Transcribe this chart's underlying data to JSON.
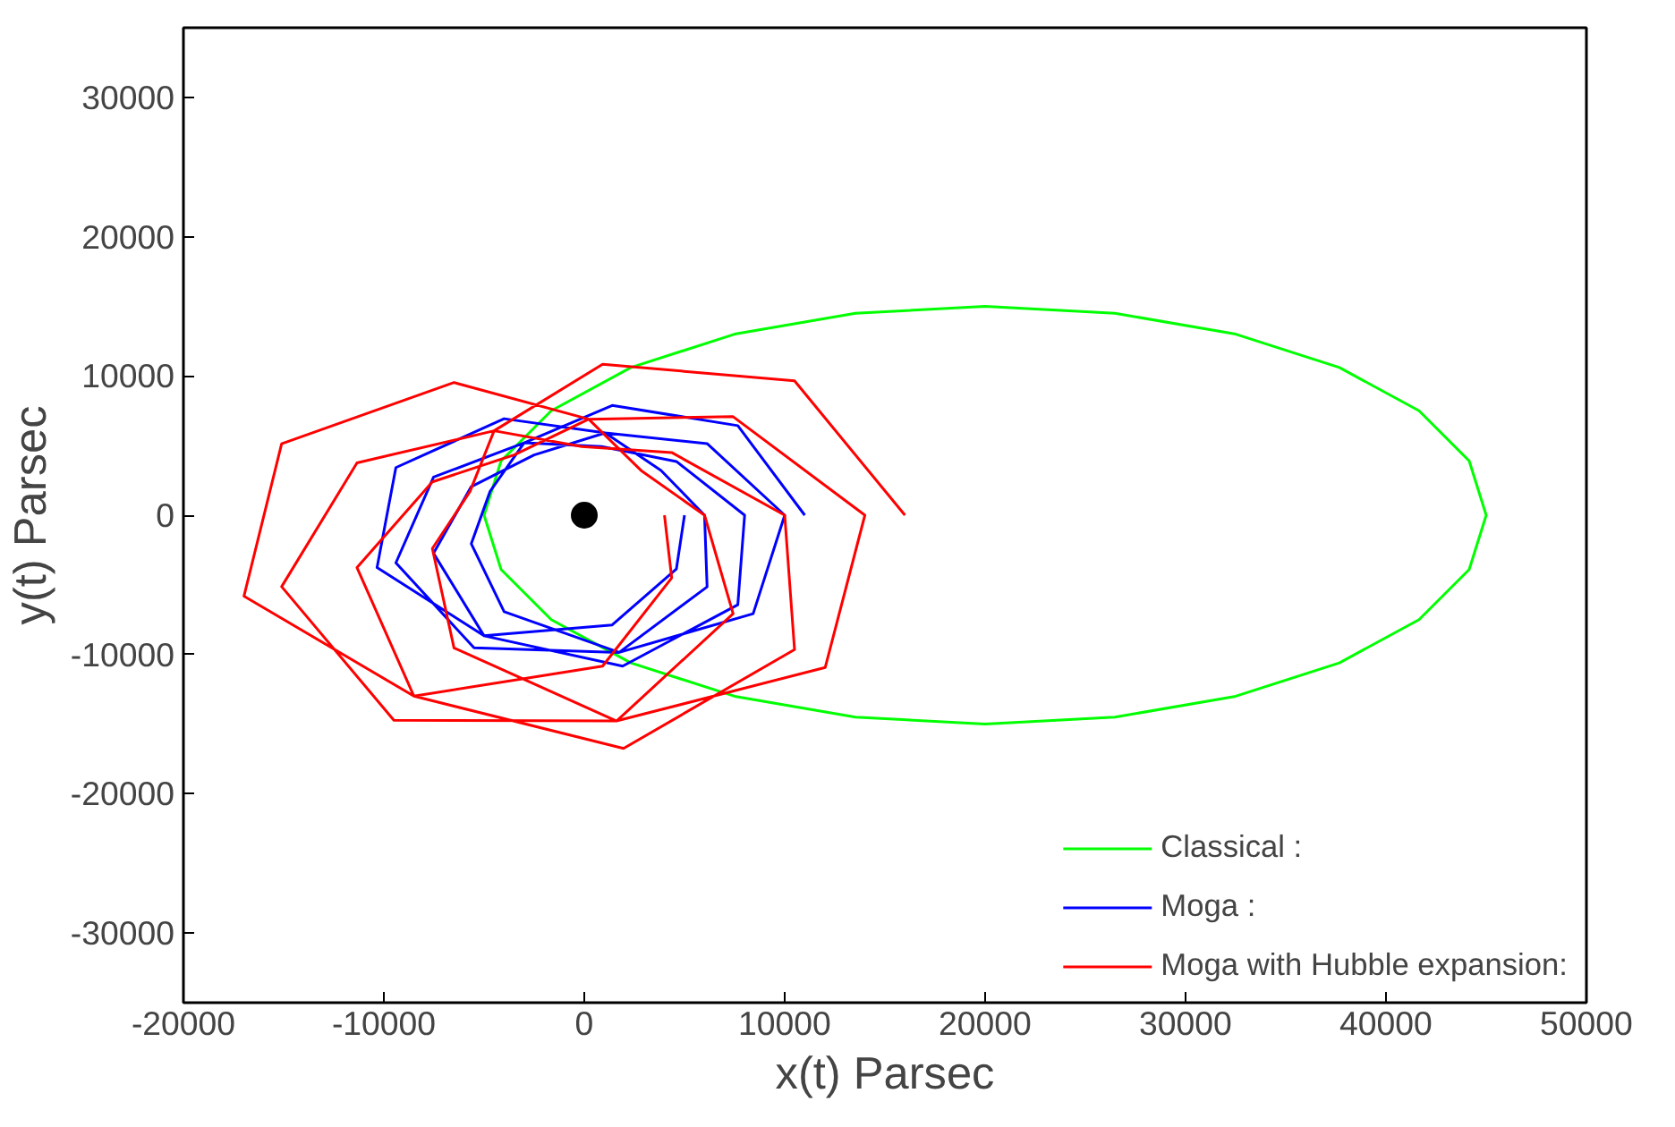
{
  "chart_data": {
    "type": "line",
    "xlabel": "x(t) Parsec",
    "ylabel": "y(t) Parsec",
    "xlim": [
      -20000,
      50000
    ],
    "ylim": [
      -35000,
      35000
    ],
    "xticks": [
      -20000,
      -10000,
      0,
      10000,
      20000,
      30000,
      40000,
      50000
    ],
    "yticks": [
      -30000,
      -20000,
      -10000,
      0,
      10000,
      20000,
      30000
    ],
    "grid": false,
    "legend": "bottom right",
    "marker": "none",
    "line_style": "solid",
    "series": [
      {
        "name": "Classical :",
        "color": "#00ff00",
        "x": [
          45000,
          44150,
          41650,
          37675,
          32500,
          26475,
          20000,
          13525,
          7500,
          2325,
          -1650,
          -4150,
          -5000,
          -4150,
          -1650,
          2325,
          7500,
          13525,
          20000,
          26475,
          32500,
          37675,
          41650,
          44150,
          45000,
          44150
        ],
        "values": [
          0,
          3900,
          7500,
          10600,
          13000,
          14500,
          15000,
          14500,
          13000,
          10600,
          7500,
          3900,
          0,
          -3900,
          -7500,
          -10600,
          -13000,
          -14500,
          -15000,
          -14500,
          -13000,
          -10600,
          -7500,
          -3900,
          0,
          3900
        ]
      },
      {
        "name": "Moga :",
        "color": "#0000ff",
        "x": [
          11000,
          7660,
          1392,
          -3000,
          -4700,
          -5640,
          -4000,
          1740,
          8426,
          10000,
          6128,
          1044,
          -2500,
          -5640,
          -7520,
          -5000,
          1914,
          7660,
          8000,
          4596,
          870,
          -3000,
          -7520,
          -9400,
          -5500,
          1740,
          6128,
          6000,
          3830,
          1044,
          -4000,
          -9400,
          -10340,
          -5000,
          1392,
          4596,
          5000
        ],
        "values": [
          0,
          6430,
          7880,
          5196,
          1710,
          -2052,
          -6928,
          -9850,
          -7073,
          0,
          5144,
          5910,
          4330,
          2052,
          -2736,
          -8660,
          -10835,
          -6430,
          0,
          3858,
          4925,
          5196,
          2736,
          -3420,
          -9526,
          -9850,
          -5144,
          0,
          3215,
          5910,
          6928,
          3420,
          -3762,
          -8660,
          -7880,
          -3858,
          0
        ]
      },
      {
        "name": "Moga with Hubble expansion:",
        "color": "#ff0000",
        "x": [
          16000,
          10490,
          914,
          -4500,
          -5700,
          -7580,
          -6500,
          1610,
          12022,
          14000,
          7426,
          218,
          -3500,
          -7580,
          -11340,
          -8500,
          1958,
          10490,
          10000,
          4362,
          -130,
          -4500,
          -11340,
          -15100,
          -9500,
          1610,
          7426,
          6000,
          2830,
          218,
          -6500,
          -15100,
          -16980,
          -8500,
          914,
          4362,
          4000
        ],
        "values": [
          0,
          9645,
          10835,
          6062,
          1710,
          -2394,
          -9526,
          -14775,
          -10931,
          0,
          7073,
          6895,
          4330,
          2394,
          -3762,
          -12990,
          -16745,
          -9645,
          0,
          4501,
          4925,
          6062,
          3762,
          -5130,
          -14722,
          -14775,
          -7073,
          0,
          3215,
          6895,
          9526,
          5130,
          -5814,
          -12990,
          -10835,
          -4501,
          0
        ]
      },
      {
        "type": "scatter",
        "marker": "circle",
        "color": "#000000",
        "x": [
          0
        ],
        "values": [
          0
        ]
      }
    ]
  }
}
